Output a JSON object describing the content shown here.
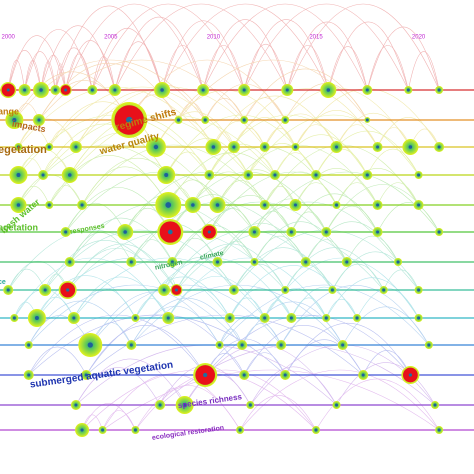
{
  "chart_data": {
    "type": "timeline",
    "xlim": [
      1999.6,
      2022.7
    ],
    "xticks": [
      2000,
      2005,
      2010,
      2015,
      2020
    ],
    "lanes": [
      {
        "color": "#d62728",
        "nodes": [
          {
            "x": 2000.0,
            "r": 8,
            "burst": true
          },
          {
            "x": 2000.8,
            "r": 6
          },
          {
            "x": 2001.6,
            "r": 8
          },
          {
            "x": 2002.3,
            "r": 5
          },
          {
            "x": 2002.8,
            "r": 6,
            "burst": true
          },
          {
            "x": 2004.1,
            "r": 5
          },
          {
            "x": 2005.2,
            "r": 6
          },
          {
            "x": 2007.5,
            "r": 8
          },
          {
            "x": 2009.5,
            "r": 6
          },
          {
            "x": 2011.5,
            "r": 6
          },
          {
            "x": 2013.6,
            "r": 6
          },
          {
            "x": 2015.6,
            "r": 8
          },
          {
            "x": 2017.5,
            "r": 5
          },
          {
            "x": 2019.5,
            "r": 4
          },
          {
            "x": 2021,
            "r": 4
          }
        ]
      },
      {
        "color": "#e38b1f",
        "nodes": [
          {
            "x": 2000.3,
            "r": 9
          },
          {
            "x": 2001.5,
            "r": 6
          },
          {
            "x": 2005.9,
            "r": 18,
            "burst": true
          },
          {
            "x": 2008.3,
            "r": 4
          },
          {
            "x": 2009.6,
            "r": 4
          },
          {
            "x": 2011.5,
            "r": 4
          },
          {
            "x": 2013.5,
            "r": 4
          },
          {
            "x": 2017.5,
            "r": 3
          }
        ]
      },
      {
        "color": "#d9c21a",
        "nodes": [
          {
            "x": 2000.5,
            "r": 4
          },
          {
            "x": 2002,
            "r": 4
          },
          {
            "x": 2003.3,
            "r": 6
          },
          {
            "x": 2007.2,
            "r": 10
          },
          {
            "x": 2010,
            "r": 8
          },
          {
            "x": 2011,
            "r": 6
          },
          {
            "x": 2012.5,
            "r": 5
          },
          {
            "x": 2014,
            "r": 4
          },
          {
            "x": 2016,
            "r": 6
          },
          {
            "x": 2018,
            "r": 5
          },
          {
            "x": 2019.6,
            "r": 8
          },
          {
            "x": 2021,
            "r": 5
          }
        ]
      },
      {
        "color": "#b8d40e",
        "nodes": [
          {
            "x": 2000.5,
            "r": 9
          },
          {
            "x": 2001.7,
            "r": 5
          },
          {
            "x": 2003,
            "r": 8
          },
          {
            "x": 2007.7,
            "r": 9
          },
          {
            "x": 2009.8,
            "r": 5
          },
          {
            "x": 2011.7,
            "r": 5
          },
          {
            "x": 2013,
            "r": 5
          },
          {
            "x": 2015,
            "r": 5
          },
          {
            "x": 2017.5,
            "r": 5
          },
          {
            "x": 2020,
            "r": 4
          }
        ]
      },
      {
        "color": "#7fcf1a",
        "nodes": [
          {
            "x": 2000.5,
            "r": 8
          },
          {
            "x": 2002,
            "r": 4
          },
          {
            "x": 2003.6,
            "r": 5
          },
          {
            "x": 2007.8,
            "r": 13
          },
          {
            "x": 2009,
            "r": 8
          },
          {
            "x": 2010.2,
            "r": 8
          },
          {
            "x": 2012.5,
            "r": 5
          },
          {
            "x": 2014,
            "r": 6
          },
          {
            "x": 2016,
            "r": 4
          },
          {
            "x": 2018,
            "r": 5
          },
          {
            "x": 2020,
            "r": 5
          }
        ]
      },
      {
        "color": "#4ec634",
        "nodes": [
          {
            "x": 2002.8,
            "r": 5
          },
          {
            "x": 2005.7,
            "r": 8
          },
          {
            "x": 2007.9,
            "r": 13,
            "burst": true
          },
          {
            "x": 2009.8,
            "r": 8,
            "burst": true
          },
          {
            "x": 2012,
            "r": 6
          },
          {
            "x": 2013.8,
            "r": 5
          },
          {
            "x": 2015.5,
            "r": 5
          },
          {
            "x": 2018,
            "r": 5
          },
          {
            "x": 2021,
            "r": 4
          }
        ]
      },
      {
        "color": "#3bbf63",
        "nodes": [
          {
            "x": 2003,
            "r": 5
          },
          {
            "x": 2006,
            "r": 5
          },
          {
            "x": 2008,
            "r": 5
          },
          {
            "x": 2010.2,
            "r": 5
          },
          {
            "x": 2012,
            "r": 4
          },
          {
            "x": 2014.5,
            "r": 5
          },
          {
            "x": 2016.5,
            "r": 5
          },
          {
            "x": 2019,
            "r": 4
          }
        ]
      },
      {
        "color": "#2fbb96",
        "nodes": [
          {
            "x": 2000,
            "r": 5
          },
          {
            "x": 2001.8,
            "r": 6
          },
          {
            "x": 2002.9,
            "r": 9,
            "burst": true
          },
          {
            "x": 2007.6,
            "r": 6
          },
          {
            "x": 2008.2,
            "r": 6,
            "burst": true
          },
          {
            "x": 2011,
            "r": 5
          },
          {
            "x": 2013.5,
            "r": 4
          },
          {
            "x": 2015.8,
            "r": 4
          },
          {
            "x": 2018.3,
            "r": 4
          },
          {
            "x": 2020,
            "r": 4
          }
        ]
      },
      {
        "color": "#2ab5c4",
        "nodes": [
          {
            "x": 2000.3,
            "r": 4
          },
          {
            "x": 2001.4,
            "r": 9
          },
          {
            "x": 2003.2,
            "r": 6
          },
          {
            "x": 2006.2,
            "r": 4
          },
          {
            "x": 2007.8,
            "r": 6
          },
          {
            "x": 2010.8,
            "r": 5
          },
          {
            "x": 2012.5,
            "r": 5
          },
          {
            "x": 2013.8,
            "r": 5
          },
          {
            "x": 2015.5,
            "r": 4
          },
          {
            "x": 2017,
            "r": 4
          },
          {
            "x": 2020,
            "r": 4
          }
        ]
      },
      {
        "color": "#2f80d6",
        "nodes": [
          {
            "x": 2001,
            "r": 4
          },
          {
            "x": 2004,
            "r": 12
          },
          {
            "x": 2006,
            "r": 5
          },
          {
            "x": 2010.3,
            "r": 4
          },
          {
            "x": 2011.4,
            "r": 5
          },
          {
            "x": 2013.3,
            "r": 5
          },
          {
            "x": 2016.3,
            "r": 5
          },
          {
            "x": 2020.5,
            "r": 4
          }
        ]
      },
      {
        "color": "#3b4ed6",
        "nodes": [
          {
            "x": 2001,
            "r": 5
          },
          {
            "x": 2003.8,
            "r": 5
          },
          {
            "x": 2009.6,
            "r": 12,
            "burst": true
          },
          {
            "x": 2011.5,
            "r": 5
          },
          {
            "x": 2013.5,
            "r": 5
          },
          {
            "x": 2017.3,
            "r": 5
          },
          {
            "x": 2019.6,
            "r": 9,
            "burst": true
          }
        ]
      },
      {
        "color": "#8a3fd0",
        "nodes": [
          {
            "x": 2003.3,
            "r": 5
          },
          {
            "x": 2007.4,
            "r": 5
          },
          {
            "x": 2008.6,
            "r": 9
          },
          {
            "x": 2011.8,
            "r": 4
          },
          {
            "x": 2016,
            "r": 4
          },
          {
            "x": 2020.8,
            "r": 4
          }
        ]
      },
      {
        "color": "#b03fd0",
        "nodes": [
          {
            "x": 2003.6,
            "r": 7
          },
          {
            "x": 2004.6,
            "r": 4
          },
          {
            "x": 2006.2,
            "r": 4
          },
          {
            "x": 2011.3,
            "r": 4
          },
          {
            "x": 2015,
            "r": 4
          },
          {
            "x": 2021,
            "r": 4
          }
        ]
      }
    ],
    "labels": [
      {
        "text": "ange",
        "color": "#c07a10"
      },
      {
        "text": "impacts",
        "color": "#b5651d"
      },
      {
        "text": "regime shifts",
        "color": "#c07a10"
      },
      {
        "text": "water quality",
        "color": "#b8860b"
      },
      {
        "text": "egetation",
        "color": "#a86a10"
      },
      {
        "text": "fresh water",
        "color": "#5cbf2a"
      },
      {
        "text": "egetation",
        "color": "#5cbf2a"
      },
      {
        "text": "responses",
        "color": "#5cbf2a"
      },
      {
        "text": "nitrogen",
        "color": "#3aa65a"
      },
      {
        "text": "climate",
        "color": "#3aa65a"
      },
      {
        "text": "ce",
        "color": "#2aa89a"
      },
      {
        "text": "submerged aquatic vegetation",
        "color": "#1f35b0"
      },
      {
        "text": "species richness",
        "color": "#7a2fc0"
      },
      {
        "text": "ecological restoration",
        "color": "#8a2fc0"
      }
    ]
  }
}
